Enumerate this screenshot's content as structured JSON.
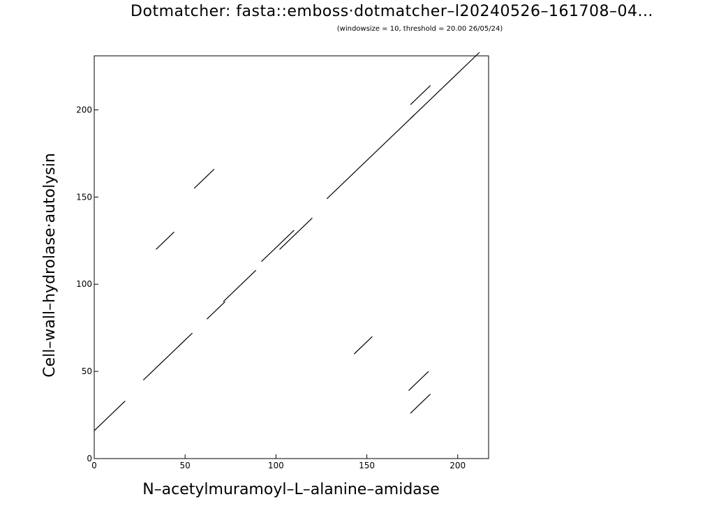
{
  "chart_data": {
    "type": "scatter",
    "title": "Dotmatcher: fasta::emboss·dotmatcher–l20240526–161708–04...",
    "subtitle": "(windowsize = 10, threshold = 20.00  26/05/24)",
    "xlabel": "N–acetylmuramoyl–L–alanine–amidase",
    "ylabel": "Cell–wall–hydrolase·autolysin",
    "xlim": [
      0,
      217
    ],
    "ylim": [
      0,
      231
    ],
    "x_ticks": [
      0,
      50,
      100,
      150,
      200
    ],
    "y_ticks": [
      0,
      50,
      100,
      150,
      200
    ],
    "grid": false,
    "segments": [
      {
        "x1": 0,
        "y1": 16,
        "x2": 17,
        "y2": 33
      },
      {
        "x1": 27,
        "y1": 45,
        "x2": 54,
        "y2": 72
      },
      {
        "x1": 62,
        "y1": 80,
        "x2": 72,
        "y2": 90
      },
      {
        "x1": 71,
        "y1": 90,
        "x2": 89,
        "y2": 108
      },
      {
        "x1": 92,
        "y1": 113,
        "x2": 110,
        "y2": 131
      },
      {
        "x1": 102,
        "y1": 120,
        "x2": 120,
        "y2": 138
      },
      {
        "x1": 128,
        "y1": 149,
        "x2": 176,
        "y2": 197
      },
      {
        "x1": 174,
        "y1": 195,
        "x2": 212,
        "y2": 233
      },
      {
        "x1": 55,
        "y1": 155,
        "x2": 66,
        "y2": 166
      },
      {
        "x1": 34,
        "y1": 120,
        "x2": 44,
        "y2": 130
      },
      {
        "x1": 174,
        "y1": 203,
        "x2": 185,
        "y2": 214
      },
      {
        "x1": 143,
        "y1": 60,
        "x2": 153,
        "y2": 70
      },
      {
        "x1": 173,
        "y1": 39,
        "x2": 184,
        "y2": 50
      },
      {
        "x1": 174,
        "y1": 26,
        "x2": 185,
        "y2": 37
      }
    ]
  }
}
